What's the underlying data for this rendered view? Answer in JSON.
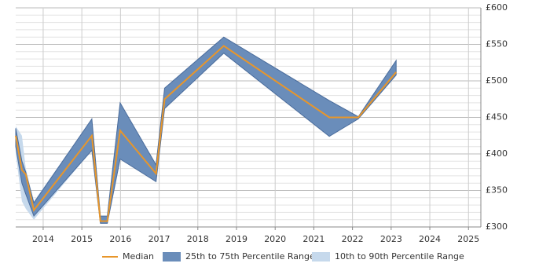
{
  "chart_data": {
    "type": "band-line",
    "x": [
      2013.29,
      2013.45,
      2013.55,
      2013.76,
      2015.26,
      2015.48,
      2015.66,
      2015.99,
      2016.92,
      2017.14,
      2018.67,
      2021.4,
      2022.15,
      2023.13
    ],
    "series": [
      {
        "name": "10th to 90th Percentile Range",
        "color": "#c6d9ec",
        "lower": [
          400,
          335,
          325,
          310,
          405,
          305,
          305,
          393,
          362,
          462,
          538,
          424,
          448,
          508
        ],
        "upper": [
          438,
          425,
          380,
          335,
          448,
          315,
          315,
          470,
          385,
          490,
          560,
          473,
          451,
          528
        ]
      },
      {
        "name": "25th to 75th Percentile Range",
        "color": "#6a8dba",
        "stroke": "#4a6c9c",
        "lower": [
          410,
          360,
          345,
          315,
          405,
          305,
          305,
          393,
          362,
          462,
          538,
          424,
          448,
          508
        ],
        "upper": [
          435,
          390,
          375,
          333,
          448,
          315,
          315,
          470,
          385,
          490,
          560,
          473,
          451,
          528
        ]
      },
      {
        "name": "Median",
        "color": "#e8962a",
        "values": [
          425,
          378,
          372,
          323,
          425,
          308,
          308,
          432,
          373,
          475,
          548,
          450,
          450,
          512
        ]
      }
    ],
    "xlim": [
      2013.29,
      2025.32
    ],
    "xticks": [
      2014,
      2015,
      2016,
      2017,
      2018,
      2019,
      2020,
      2021,
      2022,
      2023,
      2024,
      2025
    ],
    "ylim": [
      300,
      600
    ],
    "yticks": [
      {
        "value": 300,
        "label": "£300"
      },
      {
        "value": 350,
        "label": "£350"
      },
      {
        "value": 400,
        "label": "£400"
      },
      {
        "value": 450,
        "label": "£450"
      },
      {
        "value": 500,
        "label": "£500"
      },
      {
        "value": 550,
        "label": "£550"
      },
      {
        "value": 600,
        "label": "£600"
      }
    ],
    "grid": true,
    "legend": "bottom"
  }
}
